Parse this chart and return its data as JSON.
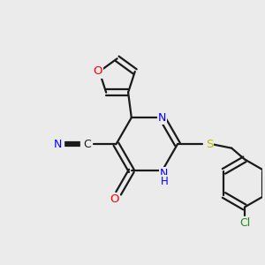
{
  "background_color": "#ebebeb",
  "bond_color": "#1a1a1a",
  "bond_width": 1.6,
  "atom_colors": {
    "N": "#0000ff",
    "O": "#ff0000",
    "S": "#b8b800",
    "Cl": "#228822",
    "C": "#1a1a1a"
  },
  "figsize": [
    3.0,
    3.0
  ],
  "dpi": 100
}
